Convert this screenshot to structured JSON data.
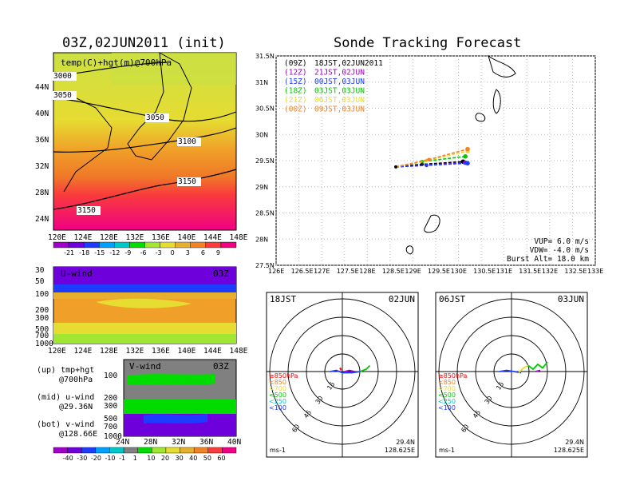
{
  "left": {
    "title": "03Z,02JUN2011 (init)",
    "map": {
      "caption": "temp(C)+hgt(m)@700hPa",
      "lon_ticks": [
        "120E",
        "124E",
        "128E",
        "132E",
        "136E",
        "140E",
        "144E",
        "148E"
      ],
      "lat_ticks": [
        "24N",
        "28N",
        "32N",
        "36N",
        "40N",
        "44N"
      ],
      "contours": [
        "3000",
        "3050",
        "3050",
        "3100",
        "3150",
        "3150"
      ],
      "colorbar_labels": [
        "-21",
        "-18",
        "-15",
        "-12",
        "-9",
        "-6",
        "-3",
        "0",
        "3",
        "6",
        "9"
      ],
      "colorbar_colors": [
        "#a000c8",
        "#6e00dc",
        "#1e3cff",
        "#00a0ff",
        "#00c8c8",
        "#00dc00",
        "#a0e632",
        "#e6dc32",
        "#e6af2d",
        "#f08228",
        "#fa3c3c",
        "#f00082"
      ]
    },
    "u_wind": {
      "caption": "U-wind",
      "time": "03Z",
      "pressure_ticks": [
        "30",
        "50",
        "100",
        "200",
        "300",
        "500",
        "700",
        "1000"
      ],
      "lon_ticks": [
        "120E",
        "124E",
        "128E",
        "132E",
        "136E",
        "140E",
        "144E",
        "148E"
      ]
    },
    "v_wind": {
      "caption": "V-wind",
      "time": "03Z",
      "pressure_ticks": [
        "100",
        "200",
        "300",
        "500",
        "700",
        "1000"
      ],
      "lat_ticks": [
        "24N",
        "28N",
        "32N",
        "36N",
        "40N"
      ]
    },
    "notes": [
      {
        "head": "(up) tmp+hgt",
        "sub": "@700hPa"
      },
      {
        "head": "(mid) u-wind",
        "sub": "@29.36N"
      },
      {
        "head": "(bot) v-wind",
        "sub": "@128.66E"
      }
    ],
    "wind_colorbar_labels": [
      "-40",
      "-30",
      "-20",
      "-10",
      "-1",
      "1",
      "10",
      "20",
      "30",
      "40",
      "50",
      "60"
    ],
    "wind_colorbar_colors": [
      "#a000c8",
      "#6e00dc",
      "#1e3cff",
      "#00a0ff",
      "#00c8c8",
      "#808080",
      "#00dc00",
      "#a0e632",
      "#e6dc32",
      "#e6af2d",
      "#f08228",
      "#fa3c3c",
      "#f00082"
    ]
  },
  "right": {
    "title": "Sonde Tracking Forecast",
    "legend": [
      {
        "z": "(09Z)",
        "jst": "18JST,02JUN2011",
        "color": "#000000"
      },
      {
        "z": "(12Z)",
        "jst": "21JST,02JUN",
        "color": "#a000c8"
      },
      {
        "z": "(15Z)",
        "jst": "00JST,03JUN",
        "color": "#1e3cff"
      },
      {
        "z": "(18Z)",
        "jst": "03JST,03JUN",
        "color": "#00c800"
      },
      {
        "z": "(21Z)",
        "jst": "06JST,03JUN",
        "color": "#e6dc32"
      },
      {
        "z": "(00Z)",
        "jst": "09JST,03JUN",
        "color": "#f08228"
      }
    ],
    "params": [
      "VUP= 6.0 m/s",
      "VDW= -4.0 m/s",
      "Burst Alt= 18.0 km"
    ]
  },
  "chart_data": [
    {
      "type": "line",
      "title": "Sonde Tracking Forecast",
      "xlim": [
        126,
        133
      ],
      "ylim": [
        27.5,
        31.5
      ],
      "x_ticks": [
        "126E",
        "126.5E",
        "127E",
        "127.5E",
        "128E",
        "128.5E",
        "129E",
        "129.5E",
        "130E",
        "130.5E",
        "131E",
        "131.5E",
        "132E",
        "132.5E",
        "133E"
      ],
      "y_ticks": [
        "27.5N",
        "28N",
        "28.5N",
        "29N",
        "29.5N",
        "30N",
        "30.5N",
        "31N",
        "31.5N"
      ],
      "launch": {
        "lon": 128.625,
        "lat": 29.38
      },
      "series": [
        {
          "name": "(09Z) 18JST,02JUN2011",
          "color": "#000000",
          "x": [
            128.625,
            129.2,
            130.1
          ],
          "y": [
            29.38,
            29.43,
            29.48
          ]
        },
        {
          "name": "(12Z) 21JST,02JUN",
          "color": "#a000c8",
          "x": [
            128.625,
            129.3,
            130.15
          ],
          "y": [
            29.38,
            29.41,
            29.46
          ]
        },
        {
          "name": "(15Z) 00JST,03JUN",
          "color": "#1e3cff",
          "x": [
            128.625,
            129.3,
            130.2
          ],
          "y": [
            29.38,
            29.41,
            29.45
          ]
        },
        {
          "name": "(18Z) 03JST,03JUN",
          "color": "#00c800",
          "x": [
            128.625,
            129.2,
            130.15
          ],
          "y": [
            29.38,
            29.48,
            29.58
          ]
        },
        {
          "name": "(21Z) 06JST,03JUN",
          "color": "#e6dc32",
          "x": [
            128.625,
            129.3,
            130.2
          ],
          "y": [
            29.38,
            29.5,
            29.68
          ]
        },
        {
          "name": "(00Z) 09JST,03JUN",
          "color": "#f08228",
          "x": [
            128.625,
            129.35,
            130.2
          ],
          "y": [
            29.38,
            29.52,
            29.72
          ]
        }
      ]
    },
    {
      "type": "scatter",
      "title": "18JST 02JUN",
      "corner_left": "18JST",
      "corner_right": "02JUN",
      "radial_labels": [
        "15",
        "30",
        "45",
        "60"
      ],
      "unit": "ms-1",
      "location": [
        "29.4N",
        "128.625E"
      ],
      "levels": [
        {
          "name": "≥850hPa",
          "color": "#ff0000"
        },
        {
          "name": "<850",
          "color": "#f08228"
        },
        {
          "name": "<700",
          "color": "#e6dc32"
        },
        {
          "name": "<500",
          "color": "#00c800"
        },
        {
          "name": "<250",
          "color": "#00c8c8"
        },
        {
          "name": "<100",
          "color": "#1e3cff"
        }
      ],
      "hodograph": [
        {
          "color": "#ff0000",
          "u": [
            -1,
            -2,
            -1
          ],
          "v": [
            1,
            3,
            2
          ]
        },
        {
          "color": "#1e3cff",
          "u": [
            -10,
            -5,
            0,
            8,
            15
          ],
          "v": [
            0,
            1,
            -1,
            -1,
            0
          ]
        },
        {
          "color": "#a000c8",
          "u": [
            2,
            6,
            10
          ],
          "v": [
            0,
            1,
            0
          ]
        },
        {
          "color": "#00c800",
          "u": [
            15,
            20,
            23
          ],
          "v": [
            0,
            2,
            5
          ]
        }
      ]
    },
    {
      "type": "scatter",
      "title": "06JST 03JUN",
      "corner_left": "06JST",
      "corner_right": "03JUN",
      "radial_labels": [
        "15",
        "30",
        "45",
        "60"
      ],
      "unit": "ms-1",
      "location": [
        "29.4N",
        "128.625E"
      ],
      "levels": [
        {
          "name": "≥850hPa",
          "color": "#ff0000"
        },
        {
          "name": "<850",
          "color": "#f08228"
        },
        {
          "name": "<700",
          "color": "#e6dc32"
        },
        {
          "name": "<500",
          "color": "#00c800"
        },
        {
          "name": "<250",
          "color": "#00c8c8"
        },
        {
          "name": "<100",
          "color": "#1e3cff"
        }
      ],
      "hodograph": [
        {
          "color": "#1e3cff",
          "u": [
            -10,
            -4,
            2,
            8
          ],
          "v": [
            0,
            1,
            0,
            -1
          ]
        },
        {
          "color": "#e6dc32",
          "u": [
            6,
            10,
            14
          ],
          "v": [
            -1,
            3,
            5
          ]
        },
        {
          "color": "#00c800",
          "u": [
            14,
            18,
            22,
            26,
            30
          ],
          "v": [
            5,
            2,
            6,
            3,
            8
          ]
        },
        {
          "color": "#a000c8",
          "u": [
            20,
            24
          ],
          "v": [
            0,
            1
          ]
        }
      ]
    }
  ]
}
